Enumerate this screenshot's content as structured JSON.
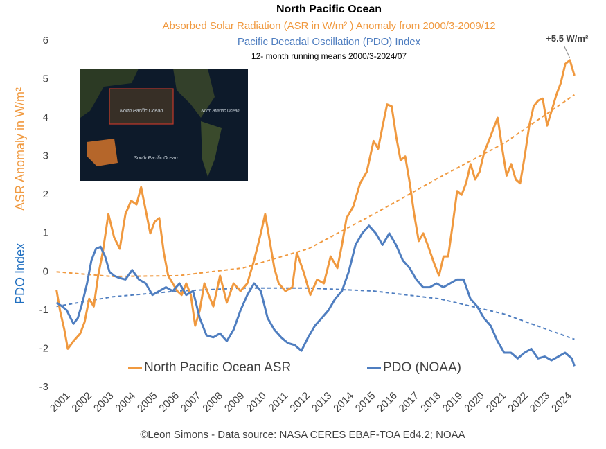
{
  "chart_data": {
    "type": "line",
    "title": "North Pacific Ocean",
    "subtitles": [
      "Absorbed Solar Radiation (ASR in W/m² ) Anomaly from 2000/3-2009/12",
      "Pacific Decadal Oscillation (PDO) Index",
      "12- month running means 2000/3-2024/07"
    ],
    "ylabel": "ASR Anomaly in  W/m²",
    "y2label": "PDO Index",
    "footer": "©Leon Simons - Data source: NASA CERES EBAF-TOA Ed4.2; NOAA",
    "annotation": "+5.5 W/m²",
    "xlim": [
      2000.4,
      2024.6
    ],
    "xticks": [
      2001,
      2002,
      2003,
      2004,
      2005,
      2006,
      2007,
      2008,
      2009,
      2010,
      2011,
      2012,
      2013,
      2014,
      2015,
      2016,
      2017,
      2018,
      2019,
      2020,
      2021,
      2022,
      2023,
      2024
    ],
    "ylim": [
      -3,
      6
    ],
    "yticks": [
      -3,
      -2,
      -1,
      0,
      1,
      2,
      3,
      4,
      5,
      6
    ],
    "series": [
      {
        "name": "North Pacific Ocean ASR",
        "color": "#f0993f",
        "x": [
          2000.45,
          2000.61,
          2000.81,
          2000.97,
          2001.23,
          2001.54,
          2001.74,
          2001.95,
          2002.16,
          2002.36,
          2002.57,
          2002.83,
          2003.09,
          2003.35,
          2003.61,
          2003.87,
          2004.12,
          2004.33,
          2004.54,
          2004.75,
          2004.95,
          2005.16,
          2005.37,
          2005.57,
          2005.78,
          2005.99,
          2006.19,
          2006.4,
          2006.61,
          2006.81,
          2007.02,
          2007.23,
          2007.43,
          2007.64,
          2007.95,
          2008.26,
          2008.57,
          2008.89,
          2009.2,
          2009.51,
          2009.82,
          2010.02,
          2010.23,
          2010.44,
          2010.64,
          2010.95,
          2011.26,
          2011.47,
          2011.78,
          2012.09,
          2012.4,
          2012.71,
          2013.02,
          2013.33,
          2013.54,
          2013.75,
          2014.06,
          2014.37,
          2014.68,
          2014.99,
          2015.2,
          2015.41,
          2015.61,
          2015.82,
          2016.03,
          2016.23,
          2016.44,
          2016.65,
          2016.85,
          2017.06,
          2017.27,
          2017.47,
          2017.78,
          2017.99,
          2018.2,
          2018.41,
          2018.61,
          2018.82,
          2019.03,
          2019.23,
          2019.44,
          2019.65,
          2019.85,
          2020.06,
          2020.27,
          2020.47,
          2020.68,
          2020.89,
          2021.09,
          2021.3,
          2021.51,
          2021.71,
          2021.92,
          2022.13,
          2022.33,
          2022.54,
          2022.75,
          2022.95,
          2023.16,
          2023.37,
          2023.57,
          2023.78,
          2023.99,
          2024.2
        ],
        "values": [
          -0.47,
          -1.0,
          -1.5,
          -2.0,
          -1.8,
          -1.6,
          -1.3,
          -0.7,
          -0.9,
          -0.1,
          0.5,
          1.5,
          0.9,
          0.6,
          1.5,
          1.85,
          1.75,
          2.2,
          1.6,
          1.0,
          1.3,
          1.4,
          0.5,
          -0.1,
          -0.3,
          -0.5,
          -0.6,
          -0.3,
          -0.6,
          -1.4,
          -1.0,
          -0.3,
          -0.6,
          -0.9,
          -0.1,
          -0.8,
          -0.3,
          -0.5,
          -0.3,
          0.3,
          1.0,
          1.5,
          0.8,
          0.1,
          -0.3,
          -0.5,
          -0.4,
          0.5,
          0.0,
          -0.6,
          -0.2,
          -0.3,
          0.4,
          0.1,
          0.7,
          1.4,
          1.7,
          2.3,
          2.6,
          3.4,
          3.2,
          3.8,
          4.35,
          4.3,
          3.5,
          2.9,
          3.0,
          2.3,
          1.5,
          0.8,
          1.0,
          0.7,
          0.2,
          -0.1,
          0.4,
          0.4,
          1.2,
          2.1,
          2.0,
          2.3,
          2.8,
          2.4,
          2.6,
          3.1,
          3.4,
          3.7,
          4.0,
          3.2,
          2.5,
          2.8,
          2.4,
          2.3,
          3.0,
          3.8,
          4.3,
          4.45,
          4.5,
          3.8,
          4.2,
          4.6,
          4.9,
          5.4,
          5.5,
          5.1
        ]
      },
      {
        "name": "PDO (NOAA)",
        "color": "#4f7ec0",
        "x": [
          2000.45,
          2000.71,
          2000.92,
          2001.23,
          2001.43,
          2001.64,
          2001.85,
          2002.05,
          2002.26,
          2002.47,
          2002.68,
          2002.88,
          2003.09,
          2003.3,
          2003.61,
          2003.92,
          2004.23,
          2004.54,
          2004.85,
          2005.16,
          2005.47,
          2005.78,
          2006.09,
          2006.4,
          2006.71,
          2007.02,
          2007.33,
          2007.64,
          2007.95,
          2008.26,
          2008.57,
          2008.89,
          2009.2,
          2009.51,
          2009.82,
          2010.13,
          2010.44,
          2010.75,
          2011.06,
          2011.37,
          2011.68,
          2011.99,
          2012.3,
          2012.61,
          2012.92,
          2013.23,
          2013.54,
          2013.85,
          2014.16,
          2014.47,
          2014.78,
          2015.09,
          2015.4,
          2015.71,
          2016.02,
          2016.33,
          2016.64,
          2016.95,
          2017.26,
          2017.57,
          2017.88,
          2018.19,
          2018.5,
          2018.81,
          2019.12,
          2019.43,
          2019.74,
          2020.05,
          2020.36,
          2020.67,
          2020.98,
          2021.29,
          2021.6,
          2021.91,
          2022.22,
          2022.53,
          2022.84,
          2023.15,
          2023.46,
          2023.77,
          2024.08,
          2024.2
        ],
        "values": [
          -0.8,
          -0.9,
          -1.0,
          -1.35,
          -1.2,
          -0.8,
          -0.3,
          0.3,
          0.6,
          0.65,
          0.4,
          0.0,
          -0.1,
          -0.15,
          -0.2,
          0.05,
          -0.2,
          -0.3,
          -0.6,
          -0.5,
          -0.4,
          -0.5,
          -0.3,
          -0.6,
          -0.5,
          -1.2,
          -1.65,
          -1.7,
          -1.6,
          -1.8,
          -1.5,
          -1.0,
          -0.6,
          -0.3,
          -0.5,
          -1.2,
          -1.5,
          -1.7,
          -1.85,
          -1.9,
          -2.05,
          -1.7,
          -1.4,
          -1.2,
          -1.0,
          -0.7,
          -0.5,
          0.0,
          0.7,
          1.0,
          1.2,
          1.0,
          0.7,
          1.0,
          0.7,
          0.3,
          0.1,
          -0.2,
          -0.4,
          -0.4,
          -0.3,
          -0.4,
          -0.3,
          -0.2,
          -0.2,
          -0.7,
          -0.9,
          -1.2,
          -1.4,
          -1.8,
          -2.1,
          -2.1,
          -2.25,
          -2.1,
          -2.0,
          -2.25,
          -2.2,
          -2.3,
          -2.2,
          -2.1,
          -2.25,
          -2.45
        ]
      }
    ],
    "trendlines": [
      {
        "color": "#f0993f",
        "x": [
          2000.45,
          2003,
          2006,
          2009,
          2012,
          2015,
          2018,
          2021,
          2024.2
        ],
        "values": [
          0,
          -0.12,
          -0.1,
          0.1,
          0.6,
          1.5,
          2.45,
          3.35,
          4.6
        ]
      },
      {
        "color": "#4f7ec0",
        "x": [
          2000.45,
          2003,
          2006,
          2009,
          2012,
          2015,
          2018,
          2021,
          2024.2
        ],
        "values": [
          -0.9,
          -0.65,
          -0.5,
          -0.42,
          -0.42,
          -0.5,
          -0.7,
          -1.1,
          -1.75
        ]
      }
    ]
  },
  "inset_map": {
    "labels": [
      "North Pacific Ocean",
      "North Atlantic Ocean",
      "South Pacific Ocean"
    ]
  }
}
